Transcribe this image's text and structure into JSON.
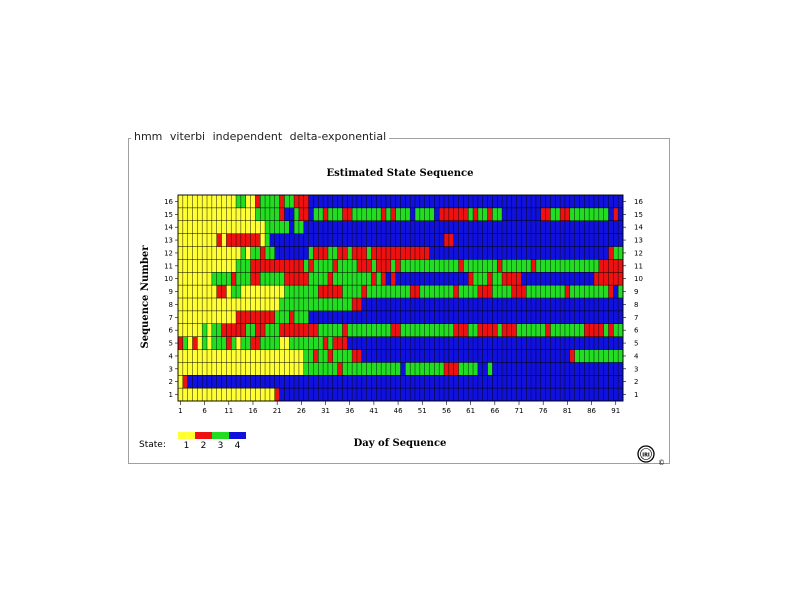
{
  "header": {
    "label": "hmm   viterbi   independent   delta-exponential"
  },
  "chart_data": {
    "type": "heatmap",
    "title": "Estimated State Sequence",
    "xlabel": "Day of Sequence",
    "ylabel": "Sequence Number",
    "x_range": [
      1,
      92
    ],
    "y_range": [
      1,
      16
    ],
    "x_ticks": [
      1,
      6,
      11,
      16,
      21,
      26,
      31,
      36,
      41,
      46,
      51,
      56,
      61,
      66,
      71,
      76,
      81,
      86,
      91
    ],
    "y_ticks": [
      1,
      2,
      3,
      4,
      5,
      6,
      7,
      8,
      9,
      10,
      11,
      12,
      13,
      14,
      15,
      16
    ],
    "states": [
      {
        "label": "1",
        "color": "#ffff33"
      },
      {
        "label": "2",
        "color": "#ee1111"
      },
      {
        "label": "3",
        "color": "#22dd22"
      },
      {
        "label": "4",
        "color": "#1111dd"
      }
    ],
    "legend": {
      "title": "State:",
      "position": "bottom-left"
    },
    "sequences": [
      {
        "seq": 1,
        "runs": [
          [
            1,
            1,
            20
          ],
          [
            2,
            21,
            21
          ],
          [
            4,
            22,
            92
          ]
        ]
      },
      {
        "seq": 2,
        "runs": [
          [
            1,
            1,
            1
          ],
          [
            2,
            2,
            2
          ],
          [
            4,
            3,
            92
          ]
        ]
      },
      {
        "seq": 3,
        "runs": [
          [
            1,
            1,
            26
          ],
          [
            3,
            27,
            33
          ],
          [
            2,
            34,
            34
          ],
          [
            3,
            35,
            46
          ],
          [
            4,
            47,
            47
          ],
          [
            3,
            48,
            55
          ],
          [
            2,
            56,
            58
          ],
          [
            3,
            59,
            62
          ],
          [
            4,
            63,
            64
          ],
          [
            3,
            65,
            65
          ],
          [
            4,
            66,
            92
          ]
        ]
      },
      {
        "seq": 4,
        "runs": [
          [
            1,
            1,
            26
          ],
          [
            3,
            27,
            28
          ],
          [
            2,
            29,
            29
          ],
          [
            3,
            30,
            31
          ],
          [
            2,
            32,
            32
          ],
          [
            3,
            33,
            36
          ],
          [
            2,
            37,
            38
          ],
          [
            4,
            39,
            81
          ],
          [
            2,
            82,
            82
          ],
          [
            3,
            83,
            92
          ]
        ]
      },
      {
        "seq": 5,
        "runs": [
          [
            2,
            1,
            1
          ],
          [
            3,
            2,
            2
          ],
          [
            1,
            3,
            3
          ],
          [
            2,
            4,
            4
          ],
          [
            1,
            5,
            5
          ],
          [
            3,
            6,
            6
          ],
          [
            1,
            7,
            7
          ],
          [
            3,
            8,
            10
          ],
          [
            2,
            11,
            11
          ],
          [
            3,
            12,
            12
          ],
          [
            1,
            13,
            13
          ],
          [
            3,
            14,
            15
          ],
          [
            2,
            16,
            17
          ],
          [
            3,
            18,
            21
          ],
          [
            1,
            22,
            23
          ],
          [
            3,
            24,
            30
          ],
          [
            2,
            31,
            31
          ],
          [
            3,
            32,
            32
          ],
          [
            2,
            33,
            35
          ],
          [
            4,
            36,
            92
          ]
        ]
      },
      {
        "seq": 6,
        "runs": [
          [
            1,
            1,
            5
          ],
          [
            3,
            6,
            6
          ],
          [
            1,
            7,
            7
          ],
          [
            3,
            8,
            9
          ],
          [
            2,
            10,
            14
          ],
          [
            3,
            15,
            16
          ],
          [
            2,
            17,
            18
          ],
          [
            3,
            19,
            21
          ],
          [
            2,
            22,
            29
          ],
          [
            3,
            30,
            34
          ],
          [
            2,
            35,
            35
          ],
          [
            3,
            36,
            44
          ],
          [
            2,
            45,
            46
          ],
          [
            3,
            47,
            57
          ],
          [
            2,
            58,
            60
          ],
          [
            3,
            61,
            62
          ],
          [
            2,
            63,
            66
          ],
          [
            3,
            67,
            67
          ],
          [
            2,
            68,
            70
          ],
          [
            3,
            71,
            76
          ],
          [
            2,
            77,
            77
          ],
          [
            3,
            78,
            84
          ],
          [
            2,
            85,
            88
          ],
          [
            3,
            89,
            89
          ],
          [
            2,
            90,
            90
          ],
          [
            3,
            91,
            92
          ]
        ]
      },
      {
        "seq": 7,
        "runs": [
          [
            1,
            1,
            12
          ],
          [
            2,
            13,
            20
          ],
          [
            3,
            21,
            23
          ],
          [
            2,
            24,
            24
          ],
          [
            3,
            25,
            27
          ],
          [
            4,
            28,
            92
          ]
        ]
      },
      {
        "seq": 8,
        "runs": [
          [
            1,
            1,
            21
          ],
          [
            3,
            22,
            36
          ],
          [
            2,
            37,
            38
          ],
          [
            4,
            39,
            92
          ]
        ]
      },
      {
        "seq": 9,
        "runs": [
          [
            1,
            1,
            8
          ],
          [
            2,
            9,
            10
          ],
          [
            1,
            11,
            11
          ],
          [
            3,
            12,
            13
          ],
          [
            1,
            14,
            22
          ],
          [
            3,
            23,
            29
          ],
          [
            2,
            30,
            34
          ],
          [
            3,
            35,
            38
          ],
          [
            2,
            39,
            39
          ],
          [
            3,
            40,
            48
          ],
          [
            2,
            49,
            50
          ],
          [
            3,
            51,
            57
          ],
          [
            2,
            58,
            58
          ],
          [
            3,
            59,
            62
          ],
          [
            2,
            63,
            65
          ],
          [
            3,
            66,
            69
          ],
          [
            2,
            70,
            72
          ],
          [
            3,
            73,
            80
          ],
          [
            2,
            81,
            81
          ],
          [
            3,
            82,
            89
          ],
          [
            2,
            90,
            90
          ],
          [
            4,
            91,
            91
          ],
          [
            3,
            92,
            92
          ]
        ]
      },
      {
        "seq": 10,
        "runs": [
          [
            1,
            1,
            7
          ],
          [
            3,
            8,
            11
          ],
          [
            2,
            12,
            12
          ],
          [
            3,
            13,
            15
          ],
          [
            2,
            16,
            17
          ],
          [
            3,
            18,
            22
          ],
          [
            2,
            23,
            27
          ],
          [
            3,
            28,
            31
          ],
          [
            2,
            32,
            32
          ],
          [
            3,
            33,
            40
          ],
          [
            2,
            41,
            41
          ],
          [
            3,
            42,
            42
          ],
          [
            2,
            43,
            43
          ],
          [
            4,
            44,
            44
          ],
          [
            2,
            45,
            45
          ],
          [
            4,
            46,
            60
          ],
          [
            2,
            61,
            61
          ],
          [
            3,
            62,
            64
          ],
          [
            2,
            65,
            65
          ],
          [
            3,
            66,
            67
          ],
          [
            2,
            68,
            71
          ],
          [
            4,
            72,
            86
          ],
          [
            2,
            87,
            92
          ]
        ]
      },
      {
        "seq": 11,
        "runs": [
          [
            1,
            1,
            12
          ],
          [
            3,
            13,
            15
          ],
          [
            2,
            16,
            26
          ],
          [
            3,
            27,
            27
          ],
          [
            2,
            28,
            28
          ],
          [
            3,
            29,
            32
          ],
          [
            2,
            33,
            33
          ],
          [
            3,
            34,
            37
          ],
          [
            2,
            38,
            40
          ],
          [
            3,
            41,
            41
          ],
          [
            2,
            42,
            44
          ],
          [
            3,
            45,
            45
          ],
          [
            2,
            46,
            46
          ],
          [
            3,
            47,
            58
          ],
          [
            2,
            59,
            59
          ],
          [
            3,
            60,
            66
          ],
          [
            2,
            67,
            67
          ],
          [
            3,
            68,
            73
          ],
          [
            2,
            74,
            74
          ],
          [
            3,
            75,
            87
          ],
          [
            2,
            88,
            92
          ]
        ]
      },
      {
        "seq": 12,
        "runs": [
          [
            1,
            1,
            13
          ],
          [
            3,
            14,
            14
          ],
          [
            1,
            15,
            15
          ],
          [
            3,
            16,
            17
          ],
          [
            2,
            18,
            18
          ],
          [
            3,
            19,
            20
          ],
          [
            4,
            21,
            27
          ],
          [
            3,
            28,
            28
          ],
          [
            2,
            29,
            31
          ],
          [
            3,
            32,
            33
          ],
          [
            2,
            34,
            35
          ],
          [
            3,
            36,
            36
          ],
          [
            2,
            37,
            39
          ],
          [
            3,
            40,
            40
          ],
          [
            2,
            41,
            52
          ],
          [
            4,
            53,
            89
          ],
          [
            2,
            90,
            90
          ],
          [
            3,
            91,
            92
          ]
        ]
      },
      {
        "seq": 13,
        "runs": [
          [
            1,
            1,
            8
          ],
          [
            2,
            9,
            9
          ],
          [
            1,
            10,
            10
          ],
          [
            2,
            11,
            17
          ],
          [
            1,
            18,
            18
          ],
          [
            3,
            19,
            19
          ],
          [
            4,
            20,
            55
          ],
          [
            2,
            56,
            57
          ],
          [
            4,
            58,
            92
          ]
        ]
      },
      {
        "seq": 14,
        "runs": [
          [
            1,
            1,
            18
          ],
          [
            3,
            19,
            23
          ],
          [
            4,
            24,
            24
          ],
          [
            3,
            25,
            26
          ],
          [
            4,
            27,
            92
          ]
        ]
      },
      {
        "seq": 15,
        "runs": [
          [
            1,
            1,
            16
          ],
          [
            3,
            17,
            21
          ],
          [
            2,
            22,
            22
          ],
          [
            4,
            23,
            24
          ],
          [
            3,
            25,
            25
          ],
          [
            2,
            26,
            27
          ],
          [
            4,
            28,
            28
          ],
          [
            3,
            29,
            30
          ],
          [
            2,
            31,
            31
          ],
          [
            3,
            32,
            34
          ],
          [
            2,
            35,
            36
          ],
          [
            3,
            37,
            42
          ],
          [
            2,
            43,
            43
          ],
          [
            3,
            44,
            44
          ],
          [
            2,
            45,
            45
          ],
          [
            3,
            46,
            48
          ],
          [
            4,
            49,
            49
          ],
          [
            3,
            50,
            53
          ],
          [
            4,
            54,
            54
          ],
          [
            2,
            55,
            60
          ],
          [
            3,
            61,
            61
          ],
          [
            2,
            62,
            62
          ],
          [
            3,
            63,
            64
          ],
          [
            2,
            65,
            65
          ],
          [
            3,
            66,
            67
          ],
          [
            4,
            68,
            75
          ],
          [
            2,
            76,
            77
          ],
          [
            3,
            78,
            79
          ],
          [
            2,
            80,
            81
          ],
          [
            3,
            82,
            89
          ],
          [
            4,
            90,
            90
          ],
          [
            2,
            91,
            91
          ],
          [
            4,
            92,
            92
          ]
        ]
      },
      {
        "seq": 16,
        "runs": [
          [
            1,
            1,
            12
          ],
          [
            3,
            13,
            14
          ],
          [
            1,
            15,
            16
          ],
          [
            2,
            17,
            17
          ],
          [
            3,
            18,
            21
          ],
          [
            2,
            22,
            22
          ],
          [
            3,
            23,
            24
          ],
          [
            2,
            25,
            27
          ],
          [
            4,
            28,
            92
          ]
        ]
      }
    ]
  }
}
